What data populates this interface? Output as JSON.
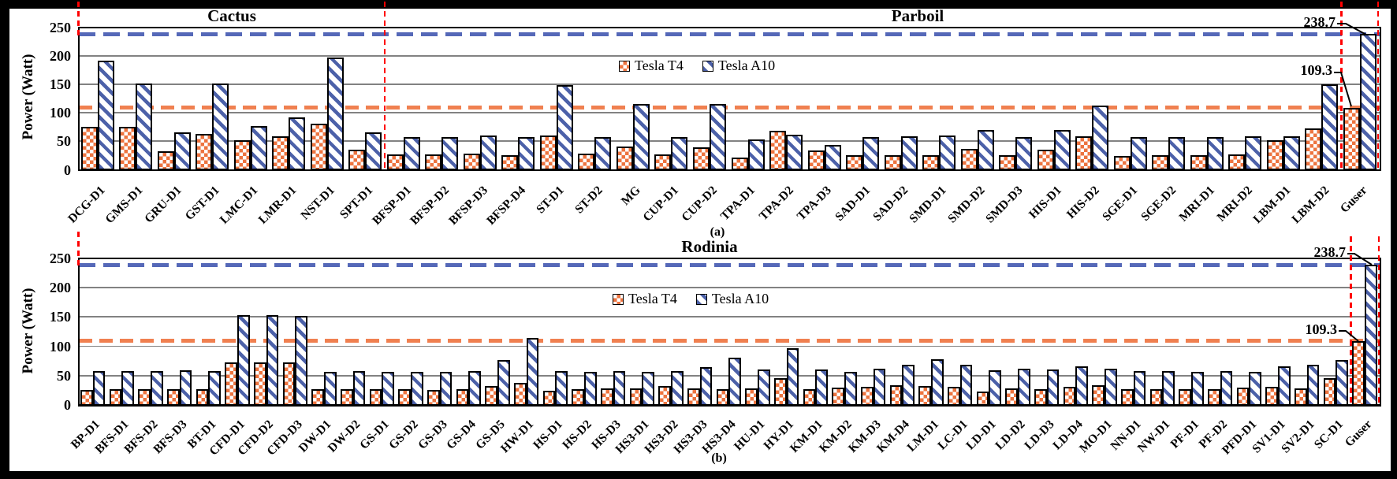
{
  "figure": {
    "ylabel": "Power (Watt)",
    "legend": {
      "t4": "Tesla T4",
      "a10": "Tesla A10"
    },
    "colors": {
      "t4_orange": "#ED7440",
      "a10_blue": "#4C61A9",
      "t4_reference_line": "#F08050",
      "a10_reference_line": "#5568B8",
      "marker_red": "#FF0000",
      "gridline_gray": "#828282"
    }
  },
  "chart_data": [
    {
      "type": "bar",
      "panel": "(a)",
      "suites": [
        "Cactus",
        "Parboil"
      ],
      "suite_split_after": "SPT-D1",
      "ylabel": "Power (Watt)",
      "ylim": [
        0,
        250
      ],
      "yticks": [
        0,
        50,
        100,
        150,
        200,
        250
      ],
      "grid": true,
      "legend_position": "upper middle",
      "reference_lines": [
        {
          "label": "238.7",
          "value": 238.7,
          "series": "Tesla A10"
        },
        {
          "label": "109.3",
          "value": 109.3,
          "series": "Tesla T4"
        }
      ],
      "categories": [
        "DCG-D1",
        "GMS-D1",
        "GRU-D1",
        "GST-D1",
        "LMC-D1",
        "LMR-D1",
        "NST-D1",
        "SPT-D1",
        "BFSP-D1",
        "BFSP-D2",
        "BFSP-D3",
        "BFSP-D4",
        "ST-D1",
        "ST-D2",
        "MG",
        "CUP-D1",
        "CUP-D2",
        "TPA-D1",
        "TPA-D2",
        "TPA-D3",
        "SAD-D1",
        "SAD-D2",
        "SMD-D1",
        "SMD-D2",
        "SMD-D3",
        "HIS-D1",
        "HIS-D2",
        "SGE-D1",
        "SGE-D2",
        "MRI-D1",
        "MRI-D2",
        "LBM-D1",
        "LBM-D2",
        "Guser"
      ],
      "series": [
        {
          "name": "Tesla T4",
          "values": [
            75,
            75,
            33,
            63,
            52,
            59,
            81,
            36,
            27,
            27,
            28,
            26,
            60,
            29,
            41,
            27,
            39,
            21,
            68,
            34,
            26,
            26,
            26,
            37,
            26,
            36,
            59,
            24,
            26,
            25,
            27,
            52,
            73,
            109.3
          ]
        },
        {
          "name": "Tesla A10",
          "values": [
            192,
            151,
            66,
            151,
            77,
            92,
            198,
            66,
            58,
            58,
            60,
            57,
            149,
            57,
            116,
            58,
            116,
            54,
            61,
            43,
            58,
            59,
            60,
            70,
            58,
            70,
            113,
            58,
            58,
            57,
            59,
            59,
            150,
            238.7
          ]
        }
      ]
    },
    {
      "type": "bar",
      "panel": "(b)",
      "suites": [
        "Rodinia"
      ],
      "ylabel": "Power (Watt)",
      "ylim": [
        0,
        250
      ],
      "yticks": [
        0,
        50,
        100,
        150,
        200,
        250
      ],
      "grid": true,
      "legend_position": "upper middle",
      "reference_lines": [
        {
          "label": "238.7",
          "value": 238.7,
          "series": "Tesla A10"
        },
        {
          "label": "109.3",
          "value": 109.3,
          "series": "Tesla T4"
        }
      ],
      "categories": [
        "BP-D1",
        "BFS-D1",
        "BFS-D2",
        "BFS-D3",
        "BT-D1",
        "CFD-D1",
        "CFD-D2",
        "CFD-D3",
        "DW-D1",
        "DW-D2",
        "GS-D1",
        "GS-D2",
        "GS-D3",
        "GS-D4",
        "GS-D5",
        "HW-D1",
        "HS-D1",
        "HS-D2",
        "HS-D3",
        "HS3-D1",
        "HS3-D2",
        "HS3-D3",
        "HS3-D4",
        "HU-D1",
        "HY-D1",
        "KM-D1",
        "KM-D2",
        "KM-D3",
        "KM-D4",
        "LM-D1",
        "LC-D1",
        "LD-D1",
        "LD-D2",
        "LD-D3",
        "LD-D4",
        "MO-D1",
        "NN-D1",
        "NW-D1",
        "PF-D1",
        "PF-D2",
        "PFD-D1",
        "SV1-D1",
        "SV2-D1",
        "SC-D1",
        "Guser"
      ],
      "series": [
        {
          "name": "Tesla T4",
          "values": [
            26,
            27,
            27,
            27,
            27,
            72,
            73,
            73,
            27,
            27,
            27,
            27,
            25,
            27,
            32,
            38,
            24,
            27,
            28,
            28,
            32,
            28,
            27,
            28,
            46,
            27,
            30,
            31,
            33,
            32,
            31,
            23,
            28,
            27,
            31,
            34,
            27,
            27,
            27,
            27,
            30,
            31,
            28,
            46,
            109.3
          ]
        },
        {
          "name": "Tesla A10",
          "values": [
            58,
            58,
            58,
            59,
            58,
            153,
            153,
            152,
            56,
            58,
            57,
            57,
            56,
            58,
            77,
            114,
            58,
            57,
            58,
            57,
            58,
            65,
            81,
            60,
            97,
            60,
            57,
            62,
            69,
            78,
            68,
            59,
            62,
            60,
            66,
            62,
            58,
            58,
            57,
            58,
            57,
            66,
            68,
            76,
            238.7
          ]
        }
      ]
    }
  ]
}
